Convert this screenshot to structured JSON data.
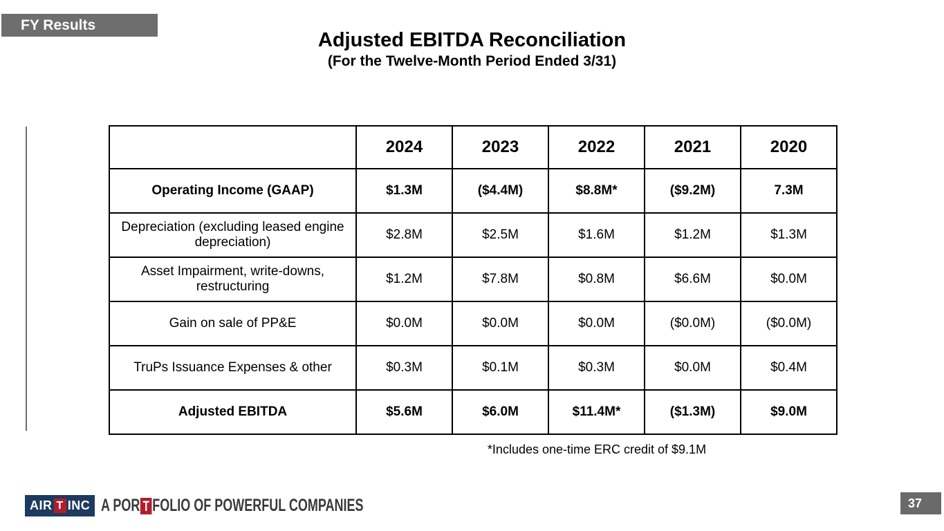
{
  "slide": {
    "badge": "FY Results",
    "title": "Adjusted EBITDA Reconciliation",
    "subtitle": "(For the Twelve-Month Period Ended 3/31)",
    "footnote": "*Includes one-time ERC credit of $9.1M",
    "page_number": "37"
  },
  "logo": {
    "air": "AIR",
    "t": "T",
    "inc": "INC",
    "tagline_pre": "A POR",
    "tagline_t": "T",
    "tagline_post": "FOLIO OF POWERFUL COMPANIES"
  },
  "colors": {
    "badge_gray": "#6e6e6e",
    "page_number_gray": "#6a6a6a",
    "logo_navy": "#1d3a5f",
    "logo_red": "#b01e2e",
    "tagline_charcoal": "#3a3a3a",
    "table_border": "#000000"
  },
  "table": {
    "header": [
      "",
      "2024",
      "2023",
      "2022",
      "2021",
      "2020"
    ],
    "rows": [
      {
        "label": "Operating Income (GAAP)",
        "bold": true,
        "values": [
          "$1.3M",
          "($4.4M)",
          "$8.8M*",
          "($9.2M)",
          "7.3M"
        ]
      },
      {
        "label": "Depreciation (excluding leased engine depreciation)",
        "bold": false,
        "values": [
          "$2.8M",
          "$2.5M",
          "$1.6M",
          "$1.2M",
          "$1.3M"
        ]
      },
      {
        "label": "Asset Impairment, write-downs, restructuring",
        "bold": false,
        "values": [
          "$1.2M",
          "$7.8M",
          "$0.8M",
          "$6.6M",
          "$0.0M"
        ]
      },
      {
        "label": "Gain on sale of PP&E",
        "bold": false,
        "values": [
          "$0.0M",
          "$0.0M",
          "$0.0M",
          "($0.0M)",
          "($0.0M)"
        ]
      },
      {
        "label": "TruPs Issuance Expenses & other",
        "bold": false,
        "values": [
          "$0.3M",
          "$0.1M",
          "$0.3M",
          "$0.0M",
          "$0.4M"
        ]
      },
      {
        "label": "Adjusted EBITDA",
        "bold": true,
        "values": [
          "$5.6M",
          "$6.0M",
          "$11.4M*",
          "($1.3M)",
          "$9.0M"
        ]
      }
    ]
  }
}
